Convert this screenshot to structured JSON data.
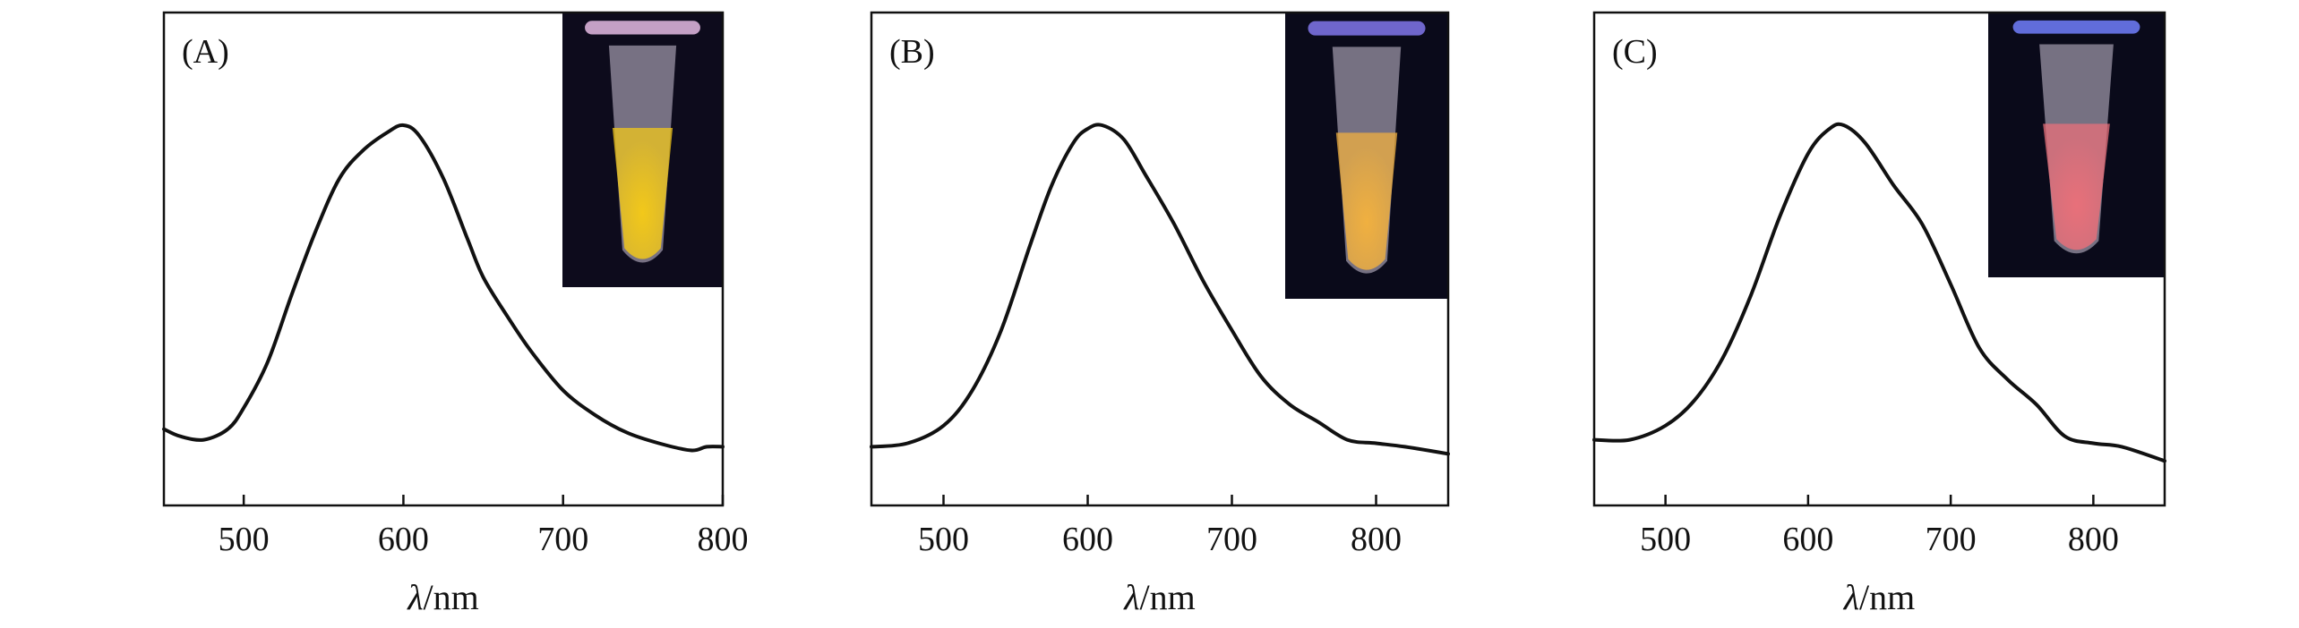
{
  "chart_data": [
    {
      "type": "line",
      "panel_label": "(A)",
      "xlabel_italic": "λ",
      "xlabel_rest": "/nm",
      "ylabel": "",
      "xlim": [
        450,
        800
      ],
      "ylim": [
        0,
        1
      ],
      "xticks": [
        500,
        600,
        700,
        800
      ],
      "inset": {
        "tube_name": "tube-photo-a",
        "glow_color": "#f2c81a",
        "cap_color": "#d8b0d8",
        "background": "#0d0b1c"
      },
      "series": [
        {
          "color": "#111111",
          "x": [
            450,
            460,
            475,
            490,
            500,
            515,
            530,
            545,
            560,
            575,
            590,
            600,
            610,
            625,
            640,
            650,
            665,
            680,
            700,
            720,
            740,
            760,
            780,
            790,
            800
          ],
          "y": [
            0.14,
            0.12,
            0.11,
            0.14,
            0.2,
            0.33,
            0.52,
            0.7,
            0.85,
            0.93,
            0.98,
            1.0,
            0.97,
            0.85,
            0.68,
            0.57,
            0.46,
            0.36,
            0.25,
            0.18,
            0.13,
            0.1,
            0.08,
            0.09,
            0.09
          ]
        }
      ]
    },
    {
      "type": "line",
      "panel_label": "(B)",
      "xlabel_italic": "λ",
      "xlabel_rest": "/nm",
      "ylabel": "",
      "xlim": [
        450,
        850
      ],
      "ylim": [
        0,
        1
      ],
      "xticks": [
        500,
        600,
        700,
        800
      ],
      "inset": {
        "tube_name": "tube-photo-b",
        "glow_color": "#f0b040",
        "cap_color": "#7a70e0",
        "background": "#0a0a1a"
      },
      "series": [
        {
          "color": "#111111",
          "x": [
            450,
            475,
            500,
            520,
            540,
            560,
            575,
            590,
            600,
            610,
            625,
            640,
            660,
            680,
            700,
            720,
            740,
            760,
            780,
            800,
            820,
            850
          ],
          "y": [
            0.09,
            0.1,
            0.15,
            0.25,
            0.42,
            0.66,
            0.83,
            0.95,
            0.99,
            1.0,
            0.96,
            0.86,
            0.72,
            0.56,
            0.42,
            0.29,
            0.21,
            0.16,
            0.11,
            0.1,
            0.09,
            0.07
          ]
        }
      ]
    },
    {
      "type": "line",
      "panel_label": "(C)",
      "xlabel_italic": "λ",
      "xlabel_rest": "/nm",
      "ylabel": "",
      "xlim": [
        450,
        850
      ],
      "ylim": [
        0,
        1
      ],
      "xticks": [
        500,
        600,
        700,
        800
      ],
      "inset": {
        "tube_name": "tube-photo-c",
        "glow_color": "#e8707a",
        "cap_color": "#6a78f0",
        "background": "#0a0a1a"
      },
      "series": [
        {
          "color": "#111111",
          "x": [
            450,
            475,
            500,
            520,
            540,
            560,
            580,
            600,
            615,
            625,
            640,
            660,
            680,
            700,
            720,
            740,
            760,
            780,
            800,
            820,
            850
          ],
          "y": [
            0.11,
            0.11,
            0.15,
            0.22,
            0.34,
            0.52,
            0.74,
            0.92,
            0.99,
            1.0,
            0.95,
            0.83,
            0.72,
            0.55,
            0.37,
            0.28,
            0.21,
            0.12,
            0.1,
            0.09,
            0.05
          ]
        }
      ]
    }
  ]
}
